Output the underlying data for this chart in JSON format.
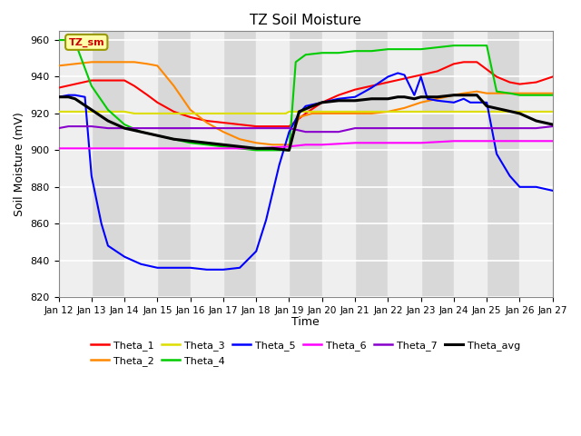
{
  "title": "TZ Soil Moisture",
  "xlabel": "Time",
  "ylabel": "Soil Moisture (mV)",
  "ylim": [
    820,
    965
  ],
  "xlim": [
    0,
    15
  ],
  "yticks": [
    820,
    840,
    860,
    880,
    900,
    920,
    940,
    960
  ],
  "xtick_labels": [
    "Jan 12",
    "Jan 13",
    "Jan 14",
    "Jan 15",
    "Jan 16",
    "Jan 17",
    "Jan 18",
    "Jan 19",
    "Jan 20",
    "Jan 21",
    "Jan 22",
    "Jan 23",
    "Jan 24",
    "Jan 25",
    "Jan 26",
    "Jan 27"
  ],
  "background_color": "#ffffff",
  "plot_bg_color": "#d8d8d8",
  "white_band_color": "#efefef",
  "legend_label": "TZ_sm",
  "series_colors": {
    "Theta_1": "#ff0000",
    "Theta_2": "#ff8800",
    "Theta_3": "#dddd00",
    "Theta_4": "#00cc00",
    "Theta_5": "#0000ff",
    "Theta_6": "#ff00ff",
    "Theta_7": "#8800cc",
    "Theta_avg": "#000000"
  },
  "Theta_1_x": [
    0,
    0.5,
    1.0,
    1.5,
    2.0,
    2.3,
    2.7,
    3.0,
    3.5,
    4.0,
    4.5,
    5.0,
    5.5,
    6.0,
    6.3,
    6.7,
    7.0,
    7.5,
    8.0,
    8.5,
    9.0,
    9.5,
    10.0,
    10.5,
    11.0,
    11.5,
    12.0,
    12.3,
    12.7,
    13.0,
    13.3,
    13.7,
    14.0,
    14.5,
    15.0
  ],
  "Theta_1_y": [
    934,
    936,
    938,
    938,
    938,
    935,
    930,
    926,
    921,
    918,
    916,
    915,
    914,
    913,
    913,
    913,
    913,
    920,
    926,
    930,
    933,
    935,
    937,
    939,
    941,
    943,
    947,
    948,
    948,
    944,
    940,
    937,
    936,
    937,
    940
  ],
  "Theta_2_x": [
    0,
    0.5,
    1.0,
    1.5,
    2.0,
    2.3,
    2.7,
    3.0,
    3.5,
    4.0,
    4.5,
    5.0,
    5.5,
    6.0,
    6.5,
    7.0,
    7.3,
    7.7,
    8.0,
    8.5,
    9.0,
    9.5,
    10.0,
    10.5,
    11.0,
    11.5,
    12.0,
    12.3,
    12.7,
    13.0,
    13.5,
    14.0,
    14.5,
    15.0
  ],
  "Theta_2_y": [
    946,
    947,
    948,
    948,
    948,
    948,
    947,
    946,
    935,
    922,
    915,
    910,
    906,
    904,
    903,
    903,
    918,
    920,
    920,
    920,
    920,
    920,
    921,
    923,
    926,
    928,
    930,
    931,
    932,
    931,
    931,
    931,
    931,
    931
  ],
  "Theta_3_x": [
    0,
    2,
    2.3,
    6.9,
    7.0,
    7.2,
    15
  ],
  "Theta_3_y": [
    921,
    921,
    920,
    920,
    921,
    921,
    921
  ],
  "Theta_4_x": [
    0,
    0.1,
    0.3,
    0.5,
    1.0,
    1.5,
    2.0,
    2.5,
    3.0,
    3.5,
    4.0,
    4.5,
    5.0,
    5.5,
    6.0,
    6.5,
    7.0,
    7.2,
    7.5,
    8.0,
    8.5,
    9.0,
    9.5,
    10.0,
    10.5,
    11.0,
    11.5,
    12.0,
    12.3,
    12.5,
    12.7,
    13.0,
    13.3,
    13.7,
    14.0,
    14.5,
    15.0
  ],
  "Theta_4_y": [
    960,
    960,
    960,
    959,
    935,
    922,
    914,
    910,
    908,
    906,
    904,
    903,
    902,
    901,
    900,
    900,
    900,
    948,
    952,
    953,
    953,
    954,
    954,
    955,
    955,
    955,
    956,
    957,
    957,
    957,
    957,
    957,
    932,
    931,
    930,
    930,
    930
  ],
  "Theta_5_x": [
    0,
    0.3,
    0.5,
    0.8,
    1.0,
    1.3,
    1.5,
    2.0,
    2.5,
    3.0,
    3.5,
    4.0,
    4.5,
    5.0,
    5.5,
    6.0,
    6.3,
    6.7,
    7.0,
    7.3,
    7.5,
    8.0,
    8.5,
    9.0,
    9.5,
    10.0,
    10.3,
    10.5,
    10.8,
    11.0,
    11.2,
    11.5,
    12.0,
    12.3,
    12.5,
    12.7,
    13.0,
    13.3,
    13.5,
    13.7,
    14.0,
    14.5,
    15.0
  ],
  "Theta_5_y": [
    929,
    930,
    930,
    929,
    886,
    860,
    848,
    842,
    838,
    836,
    836,
    836,
    835,
    835,
    836,
    845,
    862,
    892,
    910,
    920,
    924,
    926,
    928,
    929,
    934,
    940,
    942,
    941,
    930,
    940,
    928,
    927,
    926,
    928,
    926,
    926,
    926,
    898,
    892,
    886,
    880,
    880,
    878
  ],
  "Theta_6_x": [
    0,
    0.5,
    1.0,
    2.0,
    3.0,
    4.0,
    5.0,
    6.0,
    7.0,
    7.5,
    8.0,
    9.0,
    10.0,
    11.0,
    12.0,
    12.5,
    13.0,
    13.5,
    14.0,
    14.5,
    15.0
  ],
  "Theta_6_y": [
    901,
    901,
    901,
    901,
    901,
    901,
    901,
    901,
    902,
    903,
    903,
    904,
    904,
    904,
    905,
    905,
    905,
    905,
    905,
    905,
    905
  ],
  "Theta_7_x": [
    0,
    0.3,
    0.5,
    1.0,
    1.5,
    2.0,
    2.5,
    3.0,
    3.5,
    4.0,
    4.5,
    5.0,
    5.5,
    6.0,
    6.5,
    7.0,
    7.5,
    8.0,
    8.5,
    9.0,
    9.5,
    10.0,
    10.5,
    11.0,
    11.5,
    12.0,
    12.5,
    13.0,
    13.5,
    14.0,
    14.5,
    15.0
  ],
  "Theta_7_y": [
    912,
    913,
    913,
    913,
    912,
    912,
    912,
    912,
    912,
    912,
    912,
    912,
    912,
    912,
    912,
    912,
    910,
    910,
    910,
    912,
    912,
    912,
    912,
    912,
    912,
    912,
    912,
    912,
    912,
    912,
    912,
    913
  ],
  "Theta_avg_x": [
    0,
    0.3,
    0.5,
    1.0,
    1.5,
    2.0,
    2.5,
    3.0,
    3.5,
    4.0,
    4.5,
    5.0,
    5.5,
    6.0,
    6.5,
    7.0,
    7.3,
    7.7,
    8.0,
    8.5,
    9.0,
    9.5,
    10.0,
    10.3,
    10.5,
    10.8,
    11.0,
    11.5,
    12.0,
    12.3,
    12.7,
    13.0,
    13.5,
    14.0,
    14.5,
    15.0
  ],
  "Theta_avg_y": [
    929,
    929,
    928,
    922,
    916,
    912,
    910,
    908,
    906,
    905,
    904,
    903,
    902,
    901,
    901,
    900,
    921,
    924,
    926,
    927,
    927,
    928,
    928,
    929,
    929,
    928,
    929,
    929,
    930,
    930,
    930,
    924,
    922,
    920,
    916,
    914
  ]
}
